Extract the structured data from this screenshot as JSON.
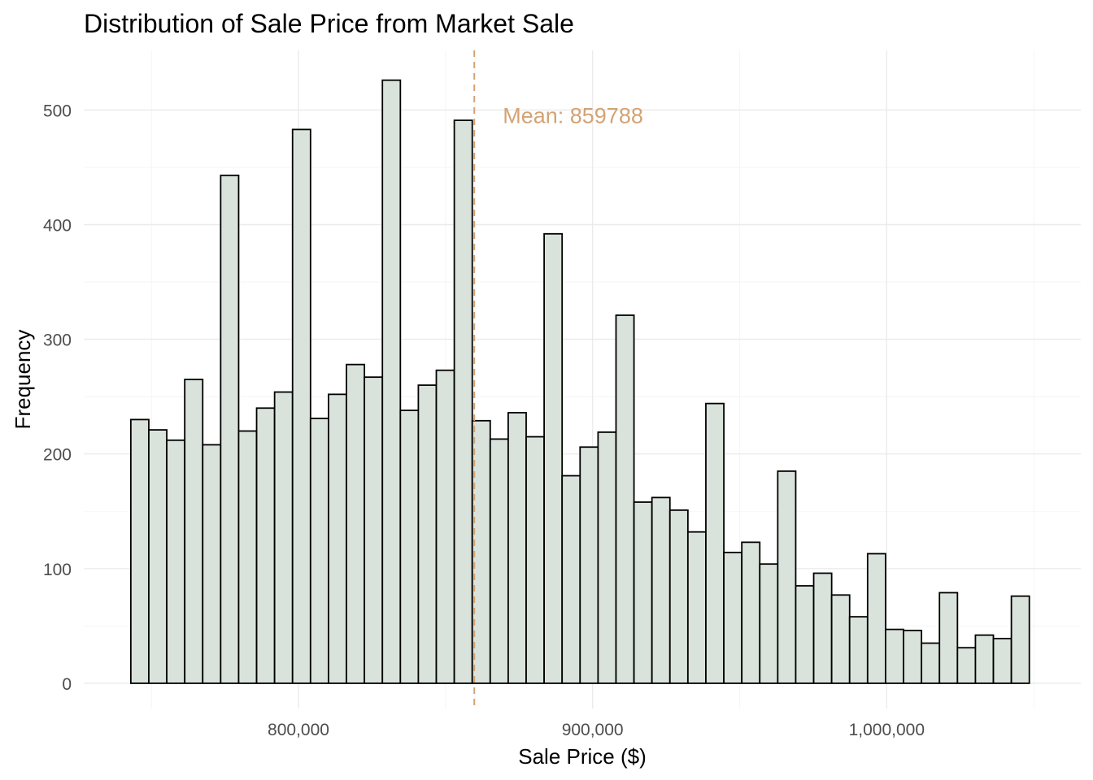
{
  "chart_data": {
    "type": "bar",
    "title": "Distribution of Sale Price from Market Sale",
    "xlabel": "Sale Price ($)",
    "ylabel": "Frequency",
    "bin_width": 6110,
    "bin_start": 743000,
    "xlim": [
      727000,
      1066000
    ],
    "ylim": [
      -22,
      552
    ],
    "x_ticks": [
      800000,
      900000,
      1000000
    ],
    "x_tick_labels": [
      "800,000",
      "900,000",
      "1,000,000"
    ],
    "x_minor_ticks": [
      750000,
      850000,
      950000,
      1050000
    ],
    "y_ticks": [
      0,
      100,
      200,
      300,
      400,
      500
    ],
    "y_tick_labels": [
      "0",
      "100",
      "200",
      "300",
      "400",
      "500"
    ],
    "y_minor_ticks": [
      50,
      150,
      250,
      350,
      450
    ],
    "values": [
      230,
      221,
      212,
      265,
      208,
      443,
      220,
      240,
      254,
      483,
      231,
      252,
      278,
      267,
      526,
      238,
      260,
      273,
      491,
      229,
      213,
      236,
      215,
      392,
      181,
      206,
      219,
      321,
      158,
      162,
      151,
      132,
      244,
      114,
      123,
      104,
      185,
      85,
      96,
      77,
      58,
      113,
      47,
      46,
      35,
      79,
      31,
      42,
      39,
      76
    ],
    "mean": 859788,
    "mean_label": "Mean: 859788",
    "colors": {
      "bar_fill": "#d9e3db",
      "bar_outline": "#000000",
      "mean_line": "#d4a373",
      "annotation": "#d4a373"
    },
    "grid": true,
    "legend": "none"
  }
}
